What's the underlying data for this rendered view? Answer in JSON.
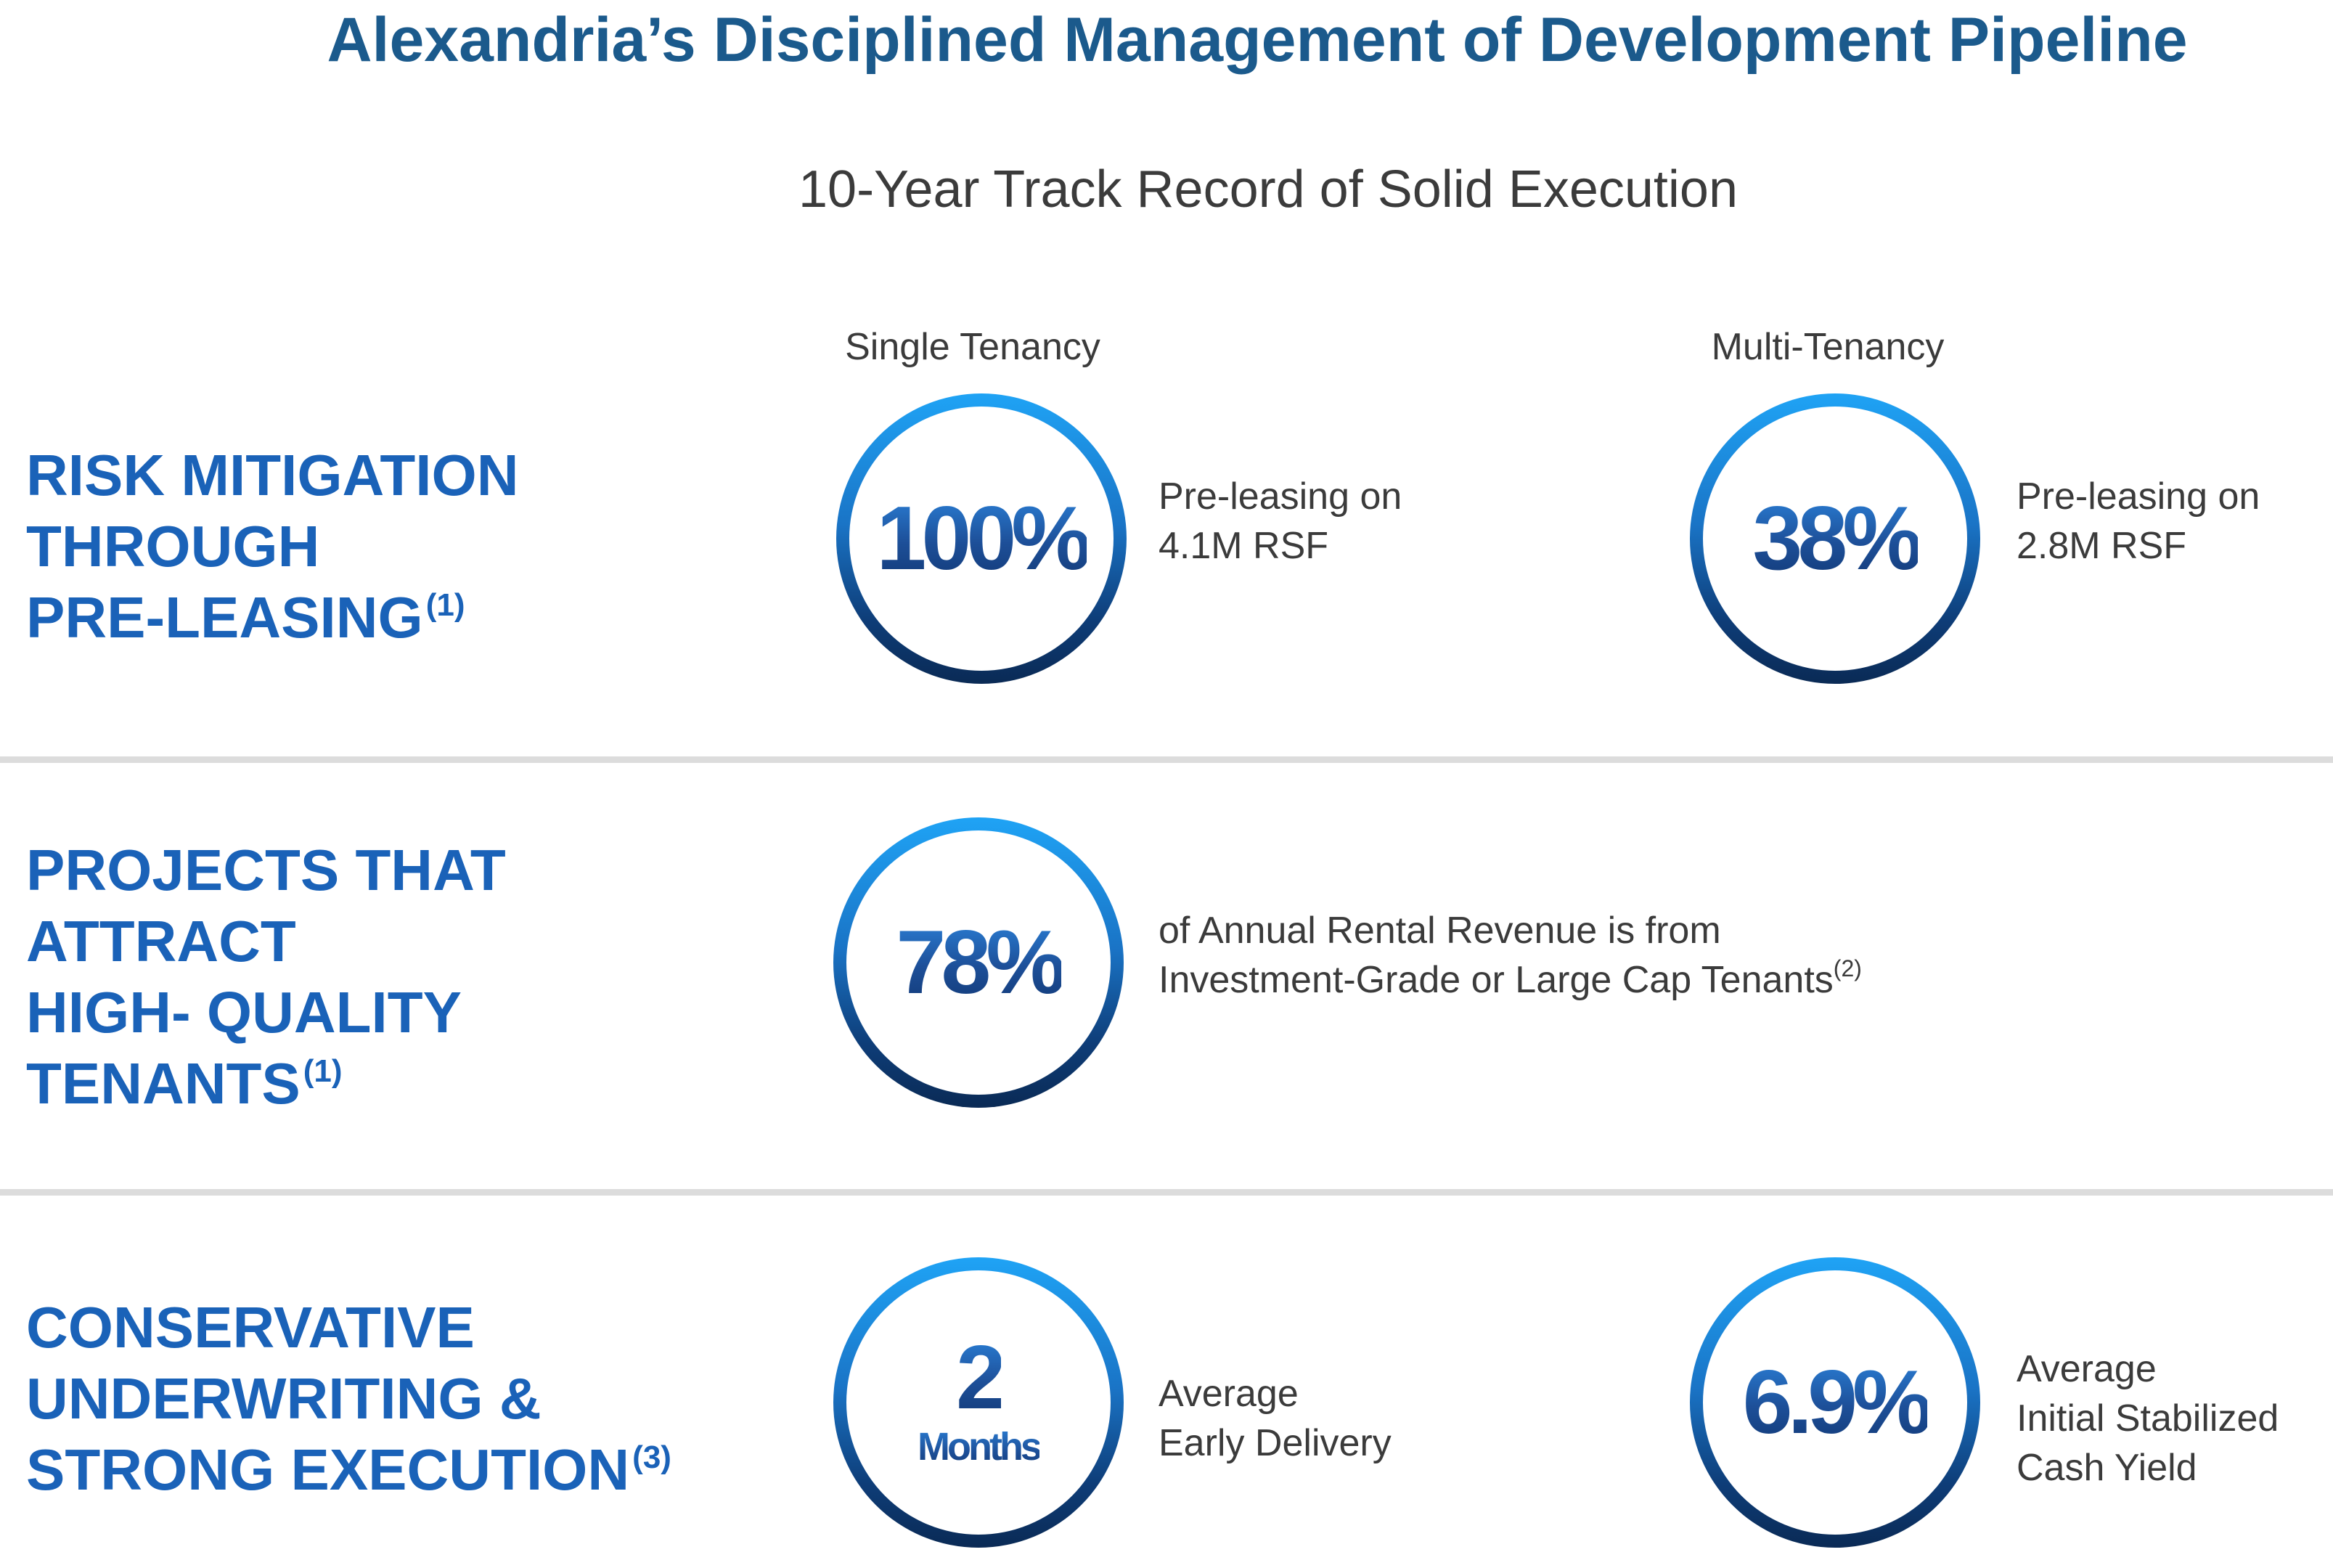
{
  "title": "Alexandria’s Disciplined Management of Development Pipeline",
  "subtitle": "10-Year Track Record of Solid Execution",
  "columns": {
    "single": "Single Tenancy",
    "multi": "Multi-Tenancy"
  },
  "sections": [
    {
      "heading_lines": [
        "RISK MITIGATION",
        "THROUGH",
        "PRE-LEASING"
      ],
      "footnote": "(1)",
      "stats": [
        {
          "value": "100%",
          "desc_lines": [
            "Pre-leasing on",
            "4.1M RSF"
          ]
        },
        {
          "value": "38%",
          "desc_lines": [
            "Pre-leasing on",
            "2.8M RSF"
          ]
        }
      ]
    },
    {
      "heading_lines": [
        "PROJECTS THAT",
        "ATTRACT",
        "HIGH- QUALITY",
        "TENANTS"
      ],
      "footnote": "(1)",
      "stats": [
        {
          "value": "78%",
          "desc_lines": [
            "of Annual Rental Revenue is from",
            "Investment-Grade or Large Cap Tenants"
          ],
          "desc_footnote": "(2)"
        }
      ]
    },
    {
      "heading_lines": [
        "CONSERVATIVE",
        "UNDERWRITING &",
        "STRONG EXECUTION"
      ],
      "footnote": "(3)",
      "stats": [
        {
          "value": "2",
          "unit": "Months",
          "desc_lines": [
            "Average",
            "Early Delivery"
          ]
        },
        {
          "value": "6.9%",
          "desc_lines": [
            "Average",
            "Initial Stabilized",
            "Cash Yield"
          ]
        }
      ]
    }
  ],
  "colors": {
    "title": "#1b5a8c",
    "heading": "#1a62b8",
    "ring_top": "#1fa3f5",
    "ring_bottom": "#0a2a55",
    "body_text": "#3b3b3b",
    "divider": "#dcdcdc"
  }
}
